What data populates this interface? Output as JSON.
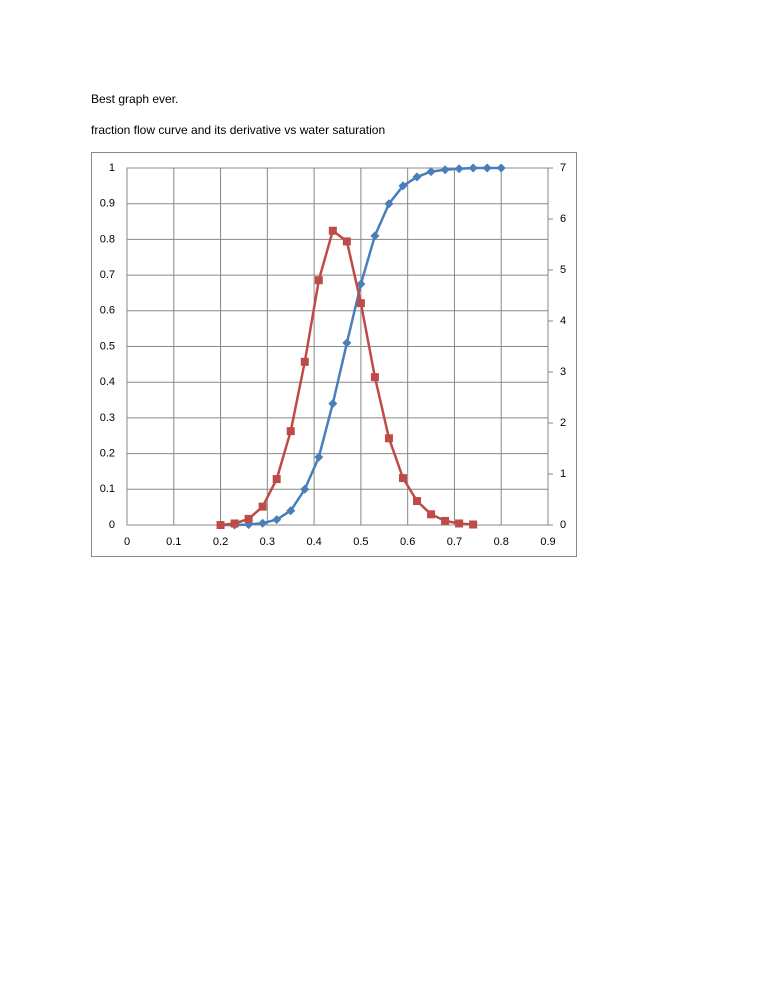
{
  "document": {
    "heading": "Best graph ever.",
    "caption": "fraction flow curve and its derivative vs water saturation"
  },
  "chart_data": {
    "type": "line",
    "xlim": [
      0,
      0.9
    ],
    "xticks": [
      0,
      0.1,
      0.2,
      0.3,
      0.4,
      0.5,
      0.6,
      0.7,
      0.8,
      0.9
    ],
    "ylim": [
      0,
      1
    ],
    "yticks": [
      0,
      0.1,
      0.2,
      0.3,
      0.4,
      0.5,
      0.6,
      0.7,
      0.8,
      0.9,
      1
    ],
    "y2lim": [
      0,
      7
    ],
    "y2ticks": [
      0,
      1,
      2,
      3,
      4,
      5,
      6,
      7
    ],
    "grid": true,
    "series": [
      {
        "color": "#4a7ebb",
        "marker": "diamond",
        "x": [
          0.2,
          0.23,
          0.26,
          0.29,
          0.32,
          0.35,
          0.38,
          0.41,
          0.44,
          0.47,
          0.5,
          0.53,
          0.56,
          0.59,
          0.62,
          0.65,
          0.68,
          0.71,
          0.74,
          0.77,
          0.8
        ],
        "values": [
          0,
          0,
          0.001,
          0.005,
          0.015,
          0.04,
          0.1,
          0.19,
          0.34,
          0.51,
          0.675,
          0.81,
          0.9,
          0.95,
          0.975,
          0.99,
          0.995,
          0.998,
          1,
          1,
          1
        ]
      },
      {
        "color": "#be4b48",
        "marker": "square",
        "axis": "y2",
        "x": [
          0.2,
          0.23,
          0.26,
          0.29,
          0.32,
          0.35,
          0.38,
          0.41,
          0.44,
          0.47,
          0.5,
          0.53,
          0.56,
          0.59,
          0.62,
          0.65,
          0.68,
          0.71,
          0.74
        ],
        "values": [
          0,
          0.03,
          0.12,
          0.36,
          0.9,
          1.84,
          3.2,
          4.8,
          5.77,
          5.56,
          4.35,
          2.9,
          1.7,
          0.92,
          0.47,
          0.21,
          0.08,
          0.03,
          0.01
        ]
      }
    ]
  }
}
